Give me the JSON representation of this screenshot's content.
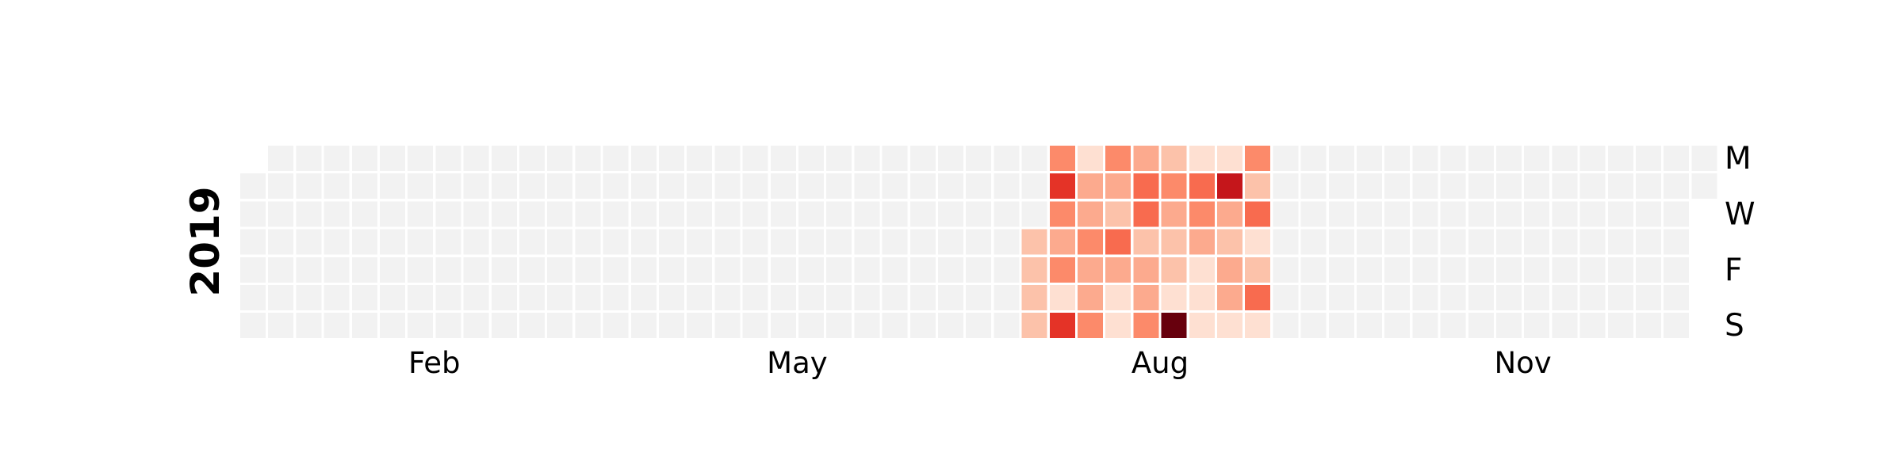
{
  "chart_data": {
    "type": "heatmap",
    "title": "",
    "year": "2019",
    "xlabel": "",
    "ylabel": "",
    "month_tick_labels": [
      {
        "label": "Feb",
        "week": 6.5
      },
      {
        "label": "May",
        "week": 19.5
      },
      {
        "label": "Aug",
        "week": 32.5
      },
      {
        "label": "Nov",
        "week": 45.5
      }
    ],
    "weekday_tick_labels": [
      {
        "label": "M",
        "day": 0
      },
      {
        "label": "W",
        "day": 2
      },
      {
        "label": "F",
        "day": 4
      },
      {
        "label": "S",
        "day": 6
      }
    ],
    "weeks": 53,
    "first_day_offset": 1,
    "last_day_index": 1,
    "value_scale": "0 (lightest) to 8 (darkest)",
    "active_week_range": [
      28,
      36
    ],
    "active_weeks": [
      {
        "week": 28,
        "values": [
          null,
          null,
          null,
          2,
          2,
          2,
          2
        ]
      },
      {
        "week": 29,
        "values": [
          4,
          6,
          4,
          3,
          4,
          1,
          6
        ]
      },
      {
        "week": 30,
        "values": [
          1,
          3,
          3,
          4,
          3,
          3,
          4
        ]
      },
      {
        "week": 31,
        "values": [
          4,
          3,
          2,
          5,
          3,
          1,
          1
        ]
      },
      {
        "week": 32,
        "values": [
          3,
          5,
          5,
          2,
          3,
          3,
          4
        ]
      },
      {
        "week": 33,
        "values": [
          2,
          4,
          3,
          2,
          2,
          1,
          8
        ]
      },
      {
        "week": 34,
        "values": [
          1,
          5,
          4,
          3,
          1,
          1,
          1
        ]
      },
      {
        "week": 35,
        "values": [
          1,
          7,
          3,
          2,
          3,
          3,
          1
        ]
      },
      {
        "week": 36,
        "values": [
          4,
          2,
          5,
          1,
          2,
          5,
          1
        ]
      }
    ],
    "colors": {
      "empty": "#f2f2f2",
      "scale": [
        "#fff5f0",
        "#fee0d2",
        "#fcc2aa",
        "#fcaa8e",
        "#fc8a6a",
        "#f86b4f",
        "#e43327",
        "#c5161b",
        "#67000d"
      ]
    },
    "grid": false,
    "legend": "none"
  }
}
